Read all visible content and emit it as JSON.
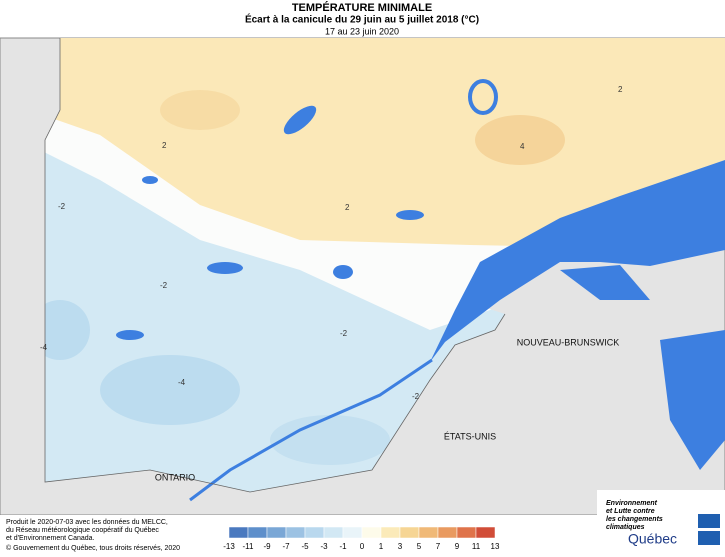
{
  "header": {
    "title": "TEMPÉRATURE MINIMALE",
    "subtitle": "Écart à la canicule du 29 juin au 5 juillet 2018 (°C)",
    "period": "17 au 23 juin 2020"
  },
  "map": {
    "regions": [
      "ONTARIO",
      "NOUVEAU-BRUNSWICK",
      "ÉTATS-UNIS"
    ],
    "contour_labels": [
      "2",
      "2",
      "2",
      "4",
      "-2",
      "-2",
      "-2",
      "-2",
      "-4",
      "-4"
    ]
  },
  "legend": {
    "ticks": [
      -13,
      -11,
      -9,
      -7,
      -5,
      -3,
      -1,
      0,
      1,
      3,
      5,
      7,
      9,
      11,
      13
    ],
    "colors": [
      "#4a79bf",
      "#5e8fcb",
      "#7aa7d6",
      "#9cc2e3",
      "#b9d8ee",
      "#d2e8f4",
      "#e9f4f9",
      "#fdfbea",
      "#fbeab9",
      "#f6d594",
      "#f0b977",
      "#e99a60",
      "#df734a",
      "#d14d38"
    ]
  },
  "footer": {
    "lines": [
      "Produit le 2020-07-03 avec les données du MELCC,",
      "du Réseau météorologique coopératif du Québec",
      "et d'Environnement Canada."
    ],
    "copyright": "© Gouvernement du Québec, tous droits réservés, 2020"
  },
  "logo": {
    "lines": [
      "Environnement",
      "et Lutte contre",
      "les changements",
      "climatiques"
    ],
    "name": "Québec"
  }
}
